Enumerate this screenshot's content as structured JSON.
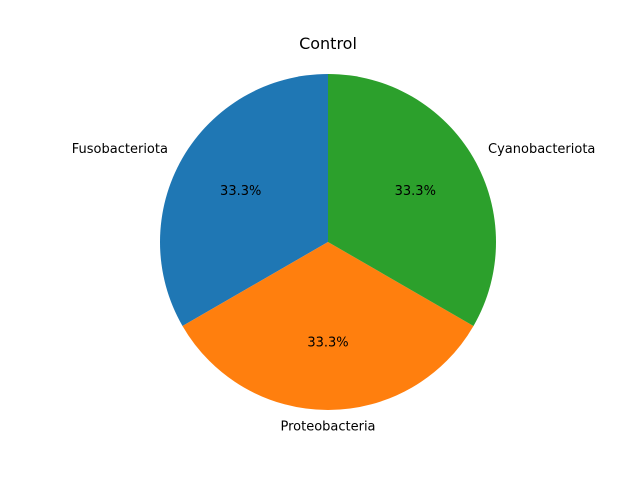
{
  "chart_data": {
    "type": "pie",
    "title": "Control",
    "start_angle_deg": 90,
    "counterclock": true,
    "slices": [
      {
        "label": "Fusobacteriota",
        "value": 33.3,
        "pct_label": "33.3%",
        "color": "#1f77b4"
      },
      {
        "label": "Proteobacteria",
        "value": 33.3,
        "pct_label": "33.3%",
        "color": "#ff7f0e"
      },
      {
        "label": "Cyanobacteriota",
        "value": 33.3,
        "pct_label": "33.3%",
        "color": "#2ca02c"
      }
    ]
  }
}
